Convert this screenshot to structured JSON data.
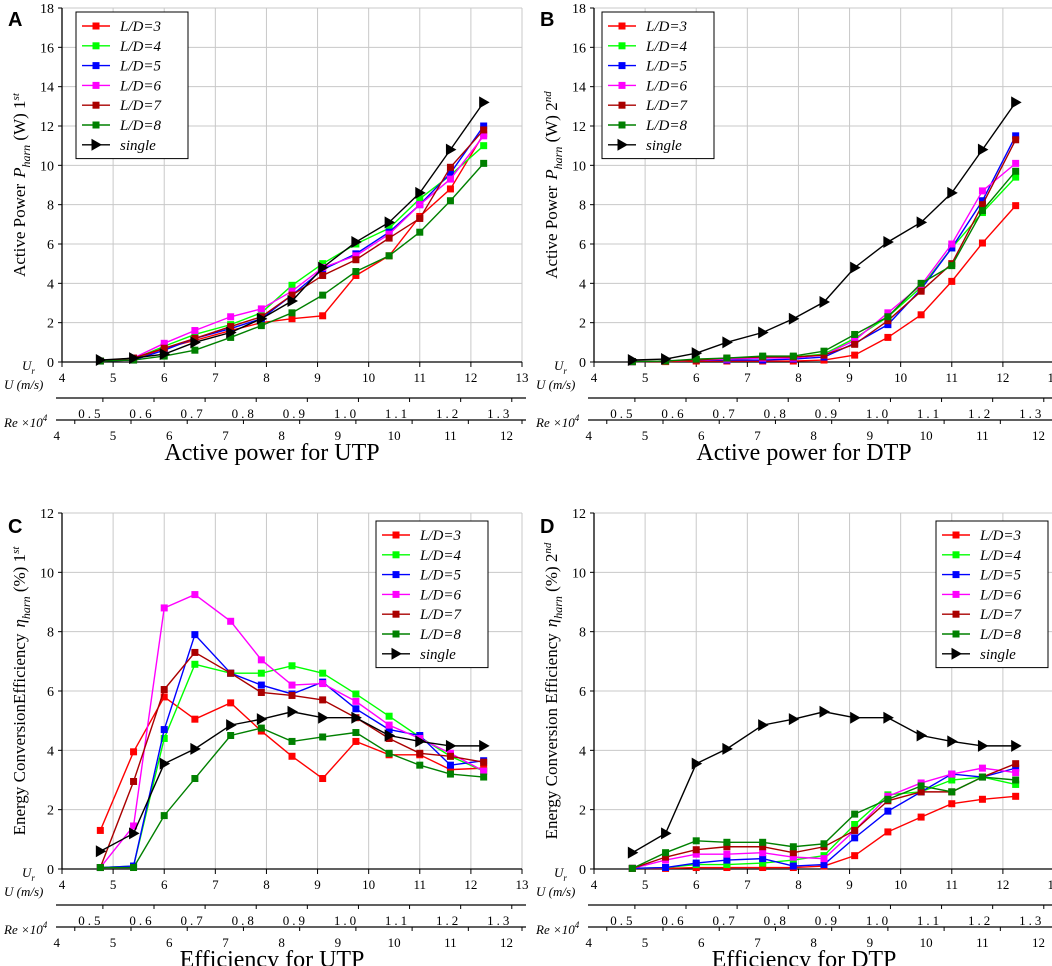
{
  "figure": {
    "background": "#ffffff",
    "axis_color": "#000000",
    "grid_color": "#c8c8c8"
  },
  "chart_data": [
    {
      "panel": "A",
      "type": "line",
      "caption": "Active power for UTP",
      "ylabel": "Active Power",
      "ysymbol": "P",
      "ysubscript": "harn",
      "yunit": " (W) 1",
      "ysup": "st",
      "ylim": [
        0,
        18
      ],
      "yticks": [
        0,
        2,
        4,
        6,
        8,
        10,
        12,
        14,
        16,
        18
      ],
      "xlim": [
        4,
        13
      ],
      "xticks": [
        4,
        5,
        6,
        7,
        8,
        9,
        10,
        11,
        12,
        13
      ],
      "x_axis_labels": {
        "ur": "U",
        "ur_sub": "r",
        "u": "U (m/s)",
        "re": "Re ×10",
        "re_sup": "4"
      },
      "aux_axis_u": {
        "labels": [
          "0.5",
          "0.6",
          "0.7",
          "0.8",
          "0.9",
          "1.0",
          "1.1",
          "1.2",
          "1.3"
        ],
        "positions": [
          4.8,
          5.8,
          6.8,
          7.8,
          8.8,
          9.8,
          10.8,
          11.8,
          12.8
        ]
      },
      "aux_axis_re": {
        "labels": [
          "4",
          "5",
          "6",
          "7",
          "8",
          "9",
          "10",
          "11",
          "12"
        ],
        "positions": [
          4.25,
          5.35,
          6.45,
          7.55,
          8.65,
          9.75,
          10.85,
          11.95,
          13.05
        ]
      },
      "legend_position": "top-left",
      "legend": [
        "L/D=3",
        "L/D=4",
        "L/D=5",
        "L/D=6",
        "L/D=7",
        "L/D=8",
        "single"
      ],
      "x": [
        4.75,
        5.4,
        6.0,
        6.6,
        7.3,
        7.9,
        8.5,
        9.1,
        9.75,
        10.4,
        11.0,
        11.6,
        12.25
      ],
      "series": [
        {
          "name": "L/D=3",
          "color": "#ff0000",
          "marker": "square",
          "values": [
            0.05,
            0.1,
            0.7,
            1.1,
            1.6,
            2.0,
            2.2,
            2.35,
            4.4,
            5.4,
            7.4,
            8.8,
            11.6
          ]
        },
        {
          "name": "L/D=4",
          "color": "#00ff00",
          "marker": "square",
          "values": [
            0.05,
            0.15,
            0.8,
            1.4,
            1.9,
            2.5,
            3.9,
            5.0,
            6.0,
            6.8,
            8.3,
            9.5,
            11.0
          ]
        },
        {
          "name": "L/D=5",
          "color": "#0000ff",
          "marker": "square",
          "values": [
            0.05,
            0.1,
            0.6,
            1.2,
            1.7,
            2.2,
            3.4,
            4.7,
            5.5,
            6.6,
            8.0,
            9.6,
            12.0
          ]
        },
        {
          "name": "L/D=6",
          "color": "#ff00ff",
          "marker": "square",
          "values": [
            0.05,
            0.2,
            0.95,
            1.6,
            2.3,
            2.7,
            3.6,
            4.8,
            5.4,
            6.5,
            8.0,
            9.3,
            11.5
          ]
        },
        {
          "name": "L/D=7",
          "color": "#aa0000",
          "marker": "square",
          "values": [
            0.05,
            0.2,
            0.7,
            1.2,
            1.8,
            2.3,
            3.4,
            4.4,
            5.2,
            6.3,
            7.3,
            9.9,
            11.8
          ]
        },
        {
          "name": "L/D=8",
          "color": "#008000",
          "marker": "square",
          "values": [
            0.05,
            0.1,
            0.3,
            0.6,
            1.25,
            1.85,
            2.5,
            3.4,
            4.6,
            5.4,
            6.6,
            8.2,
            10.1
          ]
        },
        {
          "name": "single",
          "color": "#000000",
          "marker": "triangle-right",
          "values": [
            0.1,
            0.2,
            0.4,
            1.0,
            1.5,
            2.2,
            3.1,
            4.8,
            6.1,
            7.1,
            8.6,
            10.8,
            13.2
          ]
        }
      ]
    },
    {
      "panel": "B",
      "type": "line",
      "caption": "Active power for DTP",
      "ylabel": "Active Power",
      "ysymbol": "P",
      "ysubscript": "harn",
      "yunit": " (W) 2",
      "ysup": "nd",
      "ylim": [
        0,
        18
      ],
      "yticks": [
        0,
        2,
        4,
        6,
        8,
        10,
        12,
        14,
        16,
        18
      ],
      "xlim": [
        4,
        13
      ],
      "xticks": [
        4,
        5,
        6,
        7,
        8,
        9,
        10,
        11,
        12,
        13
      ],
      "x_axis_labels": {
        "ur": "U",
        "ur_sub": "r",
        "u": "U (m/s)",
        "re": "Re ×10",
        "re_sup": "4"
      },
      "aux_axis_u": {
        "labels": [
          "0.5",
          "0.6",
          "0.7",
          "0.8",
          "0.9",
          "1.0",
          "1.1",
          "1.2",
          "1.3"
        ],
        "positions": [
          4.8,
          5.8,
          6.8,
          7.8,
          8.8,
          9.8,
          10.8,
          11.8,
          12.8
        ]
      },
      "aux_axis_re": {
        "labels": [
          "4",
          "5",
          "6",
          "7",
          "8",
          "9",
          "10",
          "11",
          "12"
        ],
        "positions": [
          4.25,
          5.35,
          6.45,
          7.55,
          8.65,
          9.75,
          10.85,
          11.95,
          13.05
        ]
      },
      "legend_position": "top-left",
      "legend": [
        "L/D=3",
        "L/D=4",
        "L/D=5",
        "L/D=6",
        "L/D=7",
        "L/D=8",
        "single"
      ],
      "x": [
        4.75,
        5.4,
        6.0,
        6.6,
        7.3,
        7.9,
        8.5,
        9.1,
        9.75,
        10.4,
        11.0,
        11.6,
        12.25
      ],
      "series": [
        {
          "name": "L/D=3",
          "color": "#ff0000",
          "marker": "square",
          "values": [
            0.02,
            0.02,
            0.05,
            0.05,
            0.05,
            0.05,
            0.1,
            0.35,
            1.25,
            2.4,
            4.1,
            6.05,
            7.95
          ]
        },
        {
          "name": "L/D=4",
          "color": "#00ff00",
          "marker": "square",
          "values": [
            0.02,
            0.05,
            0.1,
            0.15,
            0.2,
            0.25,
            0.4,
            1.2,
            2.3,
            3.8,
            5.8,
            7.6,
            9.4
          ]
        },
        {
          "name": "L/D=5",
          "color": "#0000ff",
          "marker": "square",
          "values": [
            0.02,
            0.05,
            0.1,
            0.1,
            0.1,
            0.15,
            0.25,
            0.95,
            1.9,
            3.7,
            5.8,
            8.2,
            11.5
          ]
        },
        {
          "name": "L/D=6",
          "color": "#ff00ff",
          "marker": "square",
          "values": [
            0.02,
            0.05,
            0.1,
            0.15,
            0.2,
            0.2,
            0.35,
            1.1,
            2.5,
            3.9,
            6.0,
            8.7,
            10.1
          ]
        },
        {
          "name": "L/D=7",
          "color": "#aa0000",
          "marker": "square",
          "values": [
            0.02,
            0.05,
            0.1,
            0.2,
            0.25,
            0.25,
            0.35,
            0.9,
            2.1,
            3.6,
            5.0,
            8.0,
            11.3
          ]
        },
        {
          "name": "L/D=8",
          "color": "#008000",
          "marker": "square",
          "values": [
            0.02,
            0.05,
            0.15,
            0.2,
            0.3,
            0.3,
            0.55,
            1.4,
            2.3,
            4.0,
            4.9,
            7.7,
            9.7
          ]
        },
        {
          "name": "single",
          "color": "#000000",
          "marker": "triangle-right",
          "values": [
            0.1,
            0.15,
            0.45,
            1.0,
            1.5,
            2.2,
            3.05,
            4.8,
            6.1,
            7.1,
            8.6,
            10.8,
            13.2
          ]
        }
      ]
    },
    {
      "panel": "C",
      "type": "line",
      "caption": "Efficiency for UTP",
      "ylabel": "Energy ConversionEfficiency",
      "ysymbol": "η",
      "ysubscript": "harn",
      "yunit": " (%) 1",
      "ysup": "st",
      "ylim": [
        0,
        12
      ],
      "yticks": [
        0,
        2,
        4,
        6,
        8,
        10,
        12
      ],
      "xlim": [
        4,
        13
      ],
      "xticks": [
        4,
        5,
        6,
        7,
        8,
        9,
        10,
        11,
        12,
        13
      ],
      "x_axis_labels": {
        "ur": "U",
        "ur_sub": "r",
        "u": "U (m/s)",
        "re": "Re ×10",
        "re_sup": "4"
      },
      "aux_axis_u": {
        "labels": [
          "0.5",
          "0.6",
          "0.7",
          "0.8",
          "0.9",
          "1.0",
          "1.1",
          "1.2",
          "1.3"
        ],
        "positions": [
          4.8,
          5.8,
          6.8,
          7.8,
          8.8,
          9.8,
          10.8,
          11.8,
          12.8
        ]
      },
      "aux_axis_re": {
        "labels": [
          "4",
          "5",
          "6",
          "7",
          "8",
          "9",
          "10",
          "11",
          "12"
        ],
        "positions": [
          4.25,
          5.35,
          6.45,
          7.55,
          8.65,
          9.75,
          10.85,
          11.95,
          13.05
        ]
      },
      "legend_position": "top-right",
      "legend": [
        "L/D=3",
        "L/D=4",
        "L/D=5",
        "L/D=6",
        "L/D=7",
        "L/D=8",
        "single"
      ],
      "x": [
        4.75,
        5.4,
        6.0,
        6.6,
        7.3,
        7.9,
        8.5,
        9.1,
        9.75,
        10.4,
        11.0,
        11.6,
        12.25
      ],
      "series": [
        {
          "name": "L/D=3",
          "color": "#ff0000",
          "marker": "square",
          "values": [
            1.3,
            3.95,
            5.8,
            5.05,
            5.6,
            4.65,
            3.8,
            3.05,
            4.3,
            3.85,
            3.85,
            3.35,
            3.4
          ]
        },
        {
          "name": "L/D=4",
          "color": "#00ff00",
          "marker": "square",
          "values": [
            0.05,
            0.1,
            4.4,
            6.9,
            6.6,
            6.6,
            6.85,
            6.6,
            5.9,
            5.15,
            4.45,
            3.8,
            3.3
          ]
        },
        {
          "name": "L/D=5",
          "color": "#0000ff",
          "marker": "square",
          "values": [
            0.05,
            0.1,
            4.7,
            7.9,
            6.6,
            6.2,
            5.9,
            6.3,
            5.4,
            4.7,
            4.5,
            3.5,
            3.65
          ]
        },
        {
          "name": "L/D=6",
          "color": "#ff00ff",
          "marker": "square",
          "values": [
            0.05,
            1.45,
            8.8,
            9.25,
            8.35,
            7.05,
            6.2,
            6.25,
            5.65,
            4.85,
            4.4,
            3.9,
            3.3
          ]
        },
        {
          "name": "L/D=7",
          "color": "#aa0000",
          "marker": "square",
          "values": [
            0.05,
            2.95,
            6.05,
            7.3,
            6.6,
            5.95,
            5.85,
            5.7,
            5.1,
            4.4,
            3.9,
            3.8,
            3.6
          ]
        },
        {
          "name": "L/D=8",
          "color": "#008000",
          "marker": "square",
          "values": [
            0.05,
            0.05,
            1.8,
            3.05,
            4.5,
            4.75,
            4.3,
            4.45,
            4.6,
            3.9,
            3.5,
            3.2,
            3.1
          ]
        },
        {
          "name": "single",
          "color": "#000000",
          "marker": "triangle-right",
          "values": [
            0.6,
            1.2,
            3.55,
            4.05,
            4.85,
            5.05,
            5.3,
            5.1,
            5.1,
            4.5,
            4.3,
            4.15,
            4.15
          ]
        }
      ]
    },
    {
      "panel": "D",
      "type": "line",
      "caption": "Efficiency for DTP",
      "ylabel": "Energy Conversion Efficiency",
      "ysymbol": "η",
      "ysubscript": "harn",
      "yunit": " (%) 2",
      "ysup": "nd",
      "ylim": [
        0,
        12
      ],
      "yticks": [
        0,
        2,
        4,
        6,
        8,
        10,
        12
      ],
      "xlim": [
        4,
        13
      ],
      "xticks": [
        4,
        5,
        6,
        7,
        8,
        9,
        10,
        11,
        12,
        13
      ],
      "x_axis_labels": {
        "ur": "U",
        "ur_sub": "r",
        "u": "U (m/s)",
        "re": "Re ×10",
        "re_sup": "4"
      },
      "aux_axis_u": {
        "labels": [
          "0.5",
          "0.6",
          "0.7",
          "0.8",
          "0.9",
          "1.0",
          "1.1",
          "1.2",
          "1.3"
        ],
        "positions": [
          4.8,
          5.8,
          6.8,
          7.8,
          8.8,
          9.8,
          10.8,
          11.8,
          12.8
        ]
      },
      "aux_axis_re": {
        "labels": [
          "4",
          "5",
          "6",
          "7",
          "8",
          "9",
          "10",
          "11",
          "12"
        ],
        "positions": [
          4.25,
          5.35,
          6.45,
          7.55,
          8.65,
          9.75,
          10.85,
          11.95,
          13.05
        ]
      },
      "legend_position": "top-right",
      "legend": [
        "L/D=3",
        "L/D=4",
        "L/D=5",
        "L/D=6",
        "L/D=7",
        "L/D=8",
        "single"
      ],
      "x": [
        4.75,
        5.4,
        6.0,
        6.6,
        7.3,
        7.9,
        8.5,
        9.1,
        9.75,
        10.4,
        11.0,
        11.6,
        12.25
      ],
      "series": [
        {
          "name": "L/D=3",
          "color": "#ff0000",
          "marker": "square",
          "values": [
            0.02,
            0.02,
            0.05,
            0.05,
            0.05,
            0.05,
            0.1,
            0.45,
            1.25,
            1.75,
            2.2,
            2.35,
            2.45
          ]
        },
        {
          "name": "L/D=4",
          "color": "#00ff00",
          "marker": "square",
          "values": [
            0.02,
            0.05,
            0.15,
            0.15,
            0.2,
            0.3,
            0.45,
            1.5,
            2.5,
            2.6,
            3.0,
            3.1,
            2.85
          ]
        },
        {
          "name": "L/D=5",
          "color": "#0000ff",
          "marker": "square",
          "values": [
            0.02,
            0.05,
            0.2,
            0.3,
            0.35,
            0.1,
            0.15,
            1.05,
            1.95,
            2.6,
            3.2,
            3.1,
            3.4
          ]
        },
        {
          "name": "L/D=6",
          "color": "#ff00ff",
          "marker": "square",
          "values": [
            0.02,
            0.3,
            0.5,
            0.5,
            0.55,
            0.4,
            0.35,
            1.3,
            2.45,
            2.9,
            3.2,
            3.4,
            3.25
          ]
        },
        {
          "name": "L/D=7",
          "color": "#aa0000",
          "marker": "square",
          "values": [
            0.02,
            0.4,
            0.65,
            0.75,
            0.75,
            0.55,
            0.75,
            1.3,
            2.3,
            2.6,
            2.6,
            3.1,
            3.55
          ]
        },
        {
          "name": "L/D=8",
          "color": "#008000",
          "marker": "square",
          "values": [
            0.02,
            0.55,
            0.95,
            0.9,
            0.9,
            0.75,
            0.85,
            1.85,
            2.35,
            2.8,
            2.6,
            3.1,
            3.0
          ]
        },
        {
          "name": "single",
          "color": "#000000",
          "marker": "triangle-right",
          "values": [
            0.55,
            1.2,
            3.55,
            4.05,
            4.85,
            5.05,
            5.3,
            5.1,
            5.1,
            4.5,
            4.3,
            4.15,
            4.15
          ]
        }
      ]
    }
  ]
}
